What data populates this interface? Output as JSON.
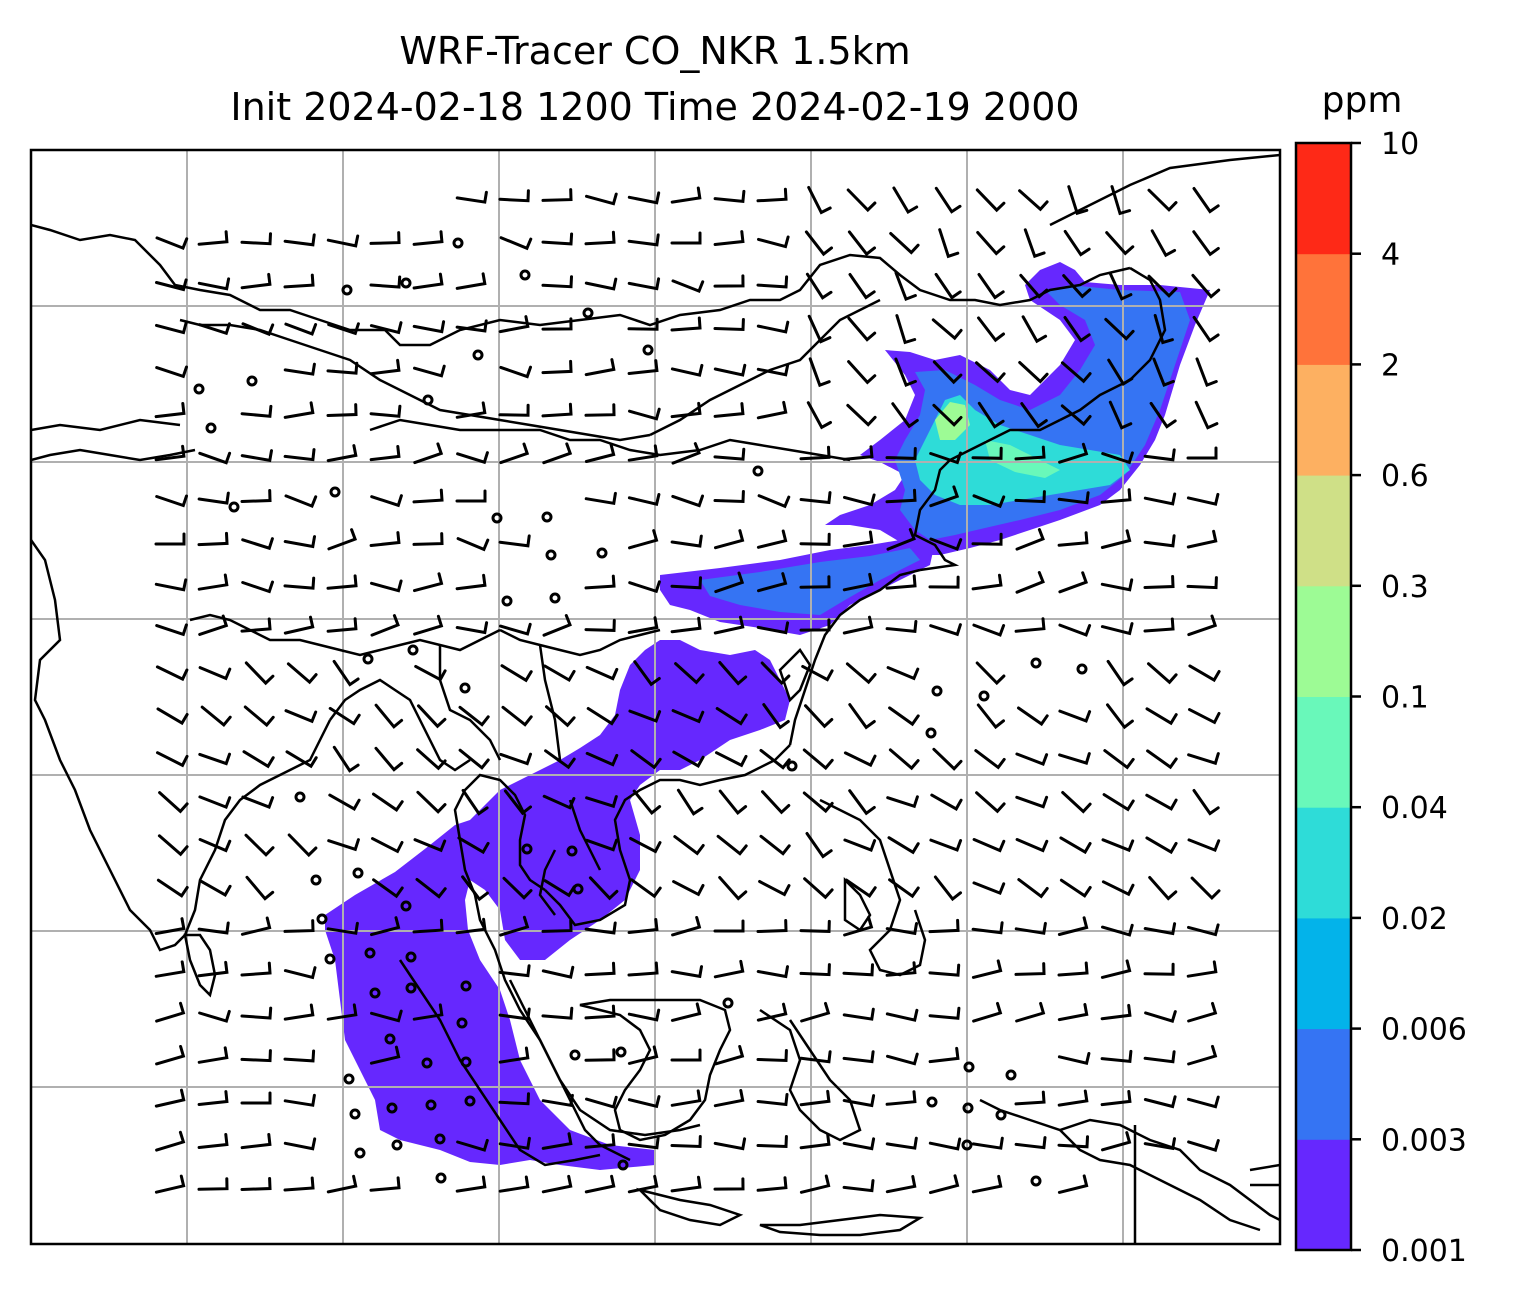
{
  "title": {
    "line1": "WRF-Tracer CO_NKR 1.5km",
    "line2": "Init 2024-02-18 1200 Time 2024-02-19 2000"
  },
  "colorbar": {
    "unit": "ppm",
    "tick_labels": [
      "0.001",
      "0.003",
      "0.006",
      "0.02",
      "0.04",
      "0.1",
      "0.3",
      "0.6",
      "2",
      "4",
      "10"
    ],
    "colors": [
      "#6628fe",
      "#3574f3",
      "#03b3ea",
      "#2edcd8",
      "#69f8ba",
      "#9dfb95",
      "#cfe087",
      "#fdb061",
      "#ff733a",
      "#fe2917"
    ]
  },
  "map": {
    "gridlines": true,
    "coastlines": true,
    "wind_barbs": true,
    "tracer_fill_color_low": "#6628fe",
    "tracer_fill_color_mid": "#3574f3",
    "tracer_fill_color_high": "#2edcd8",
    "tracer_fill_color_peak": "#9dfb95"
  }
}
